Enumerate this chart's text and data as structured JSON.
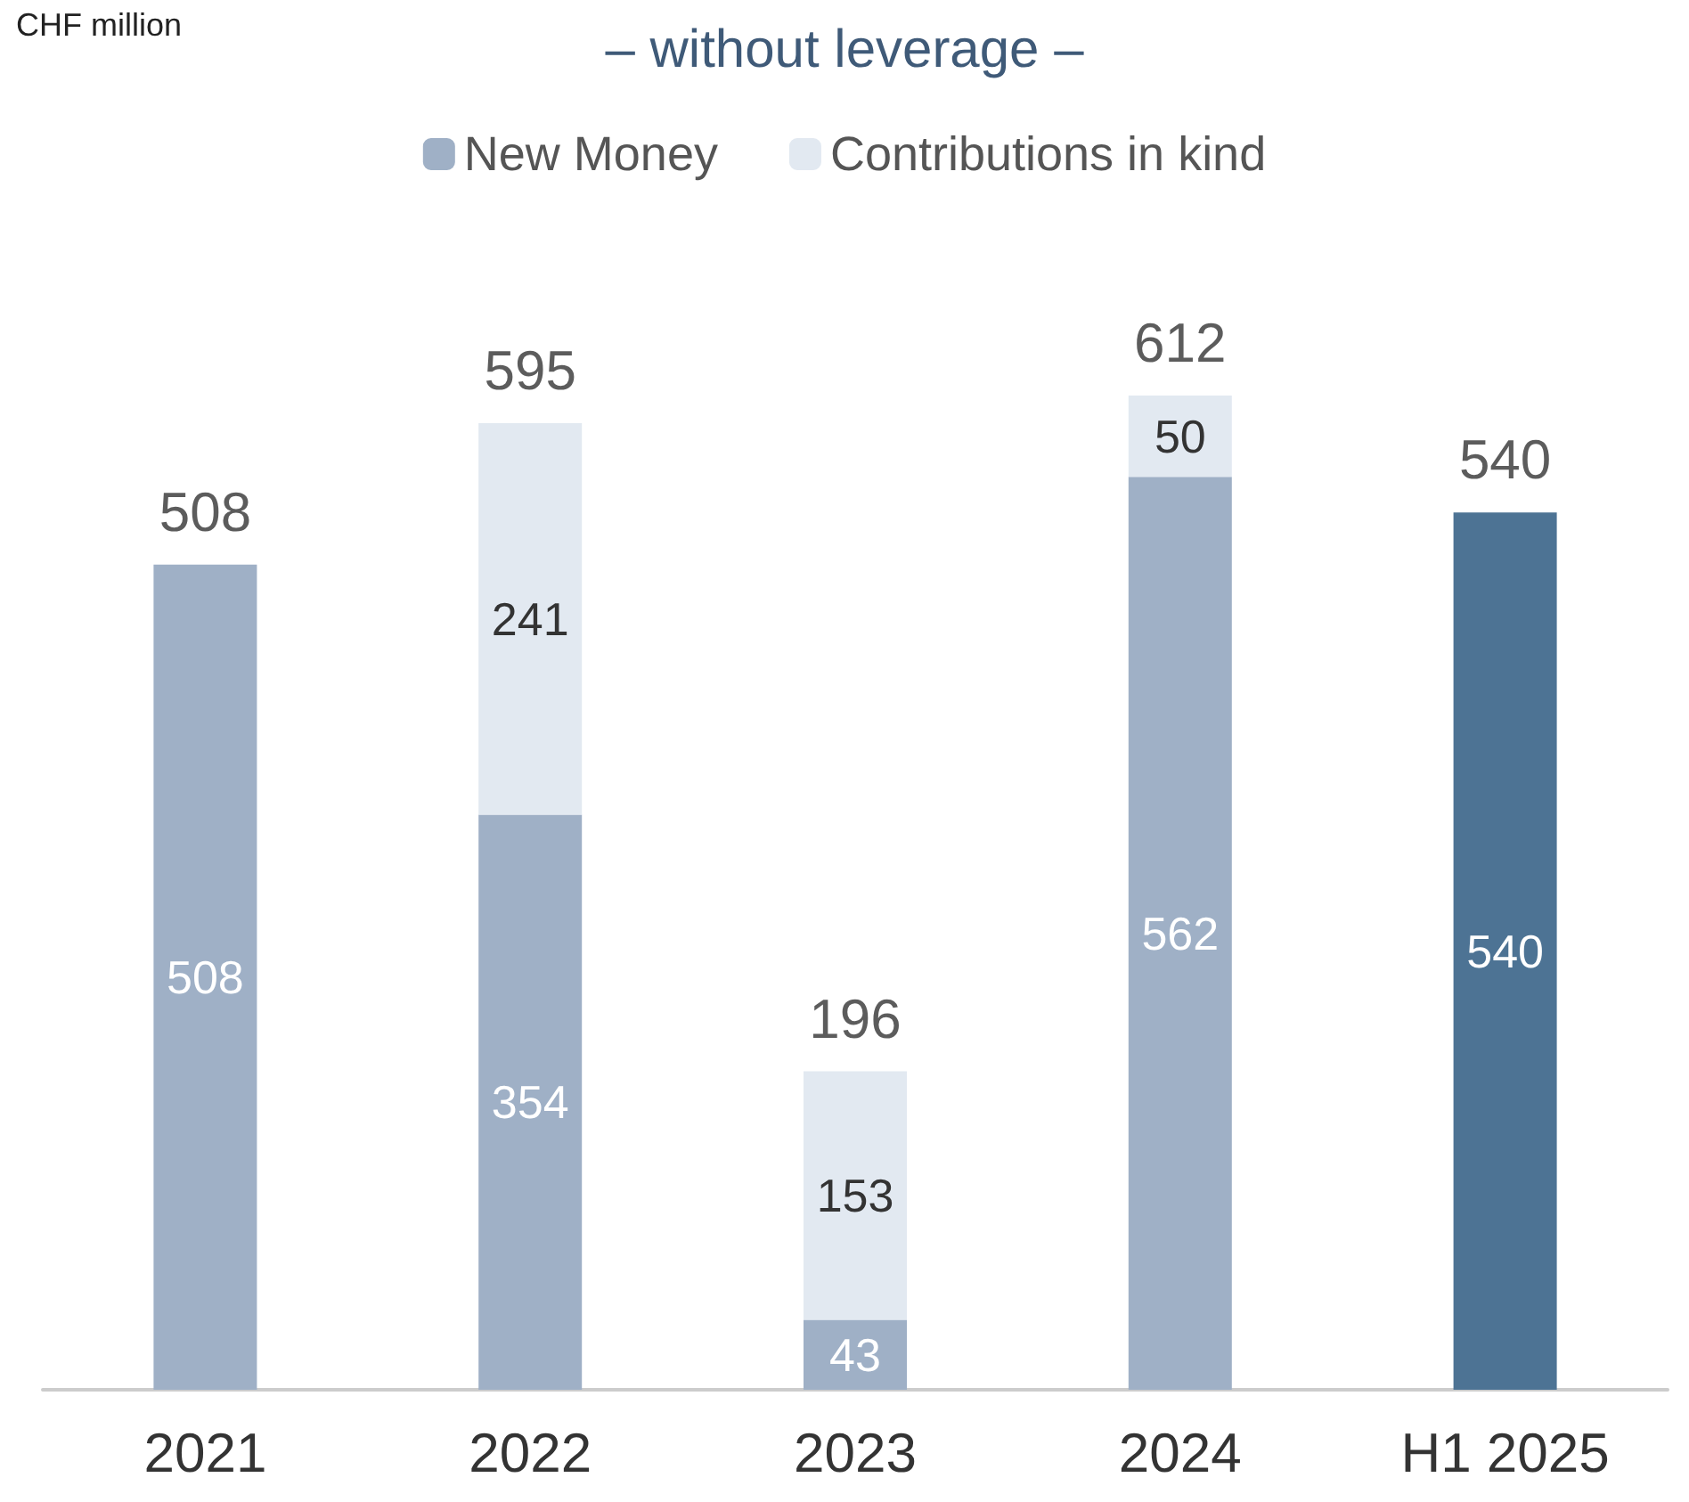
{
  "chart_data": {
    "type": "bar",
    "title": "– without leverage –",
    "annotations": [
      "CHF million"
    ],
    "categories": [
      "2021",
      "2022",
      "2023",
      "2024",
      "H1 2025"
    ],
    "stacked": true,
    "data_labels": true,
    "legend": "top",
    "series": [
      {
        "name": "New Money",
        "color": "#9fb0c6",
        "colors": [
          "#9fb0c6",
          "#9fb0c6",
          "#9fb0c6",
          "#9fb0c6",
          "#4d7394"
        ],
        "values": [
          508,
          354,
          43,
          562,
          540
        ]
      },
      {
        "name": "Contributions in kind",
        "color": "#e2e9f1",
        "values": [
          null,
          241,
          153,
          50,
          null
        ]
      }
    ],
    "totals": [
      "508",
      "595",
      "196",
      "612",
      "540"
    ]
  }
}
